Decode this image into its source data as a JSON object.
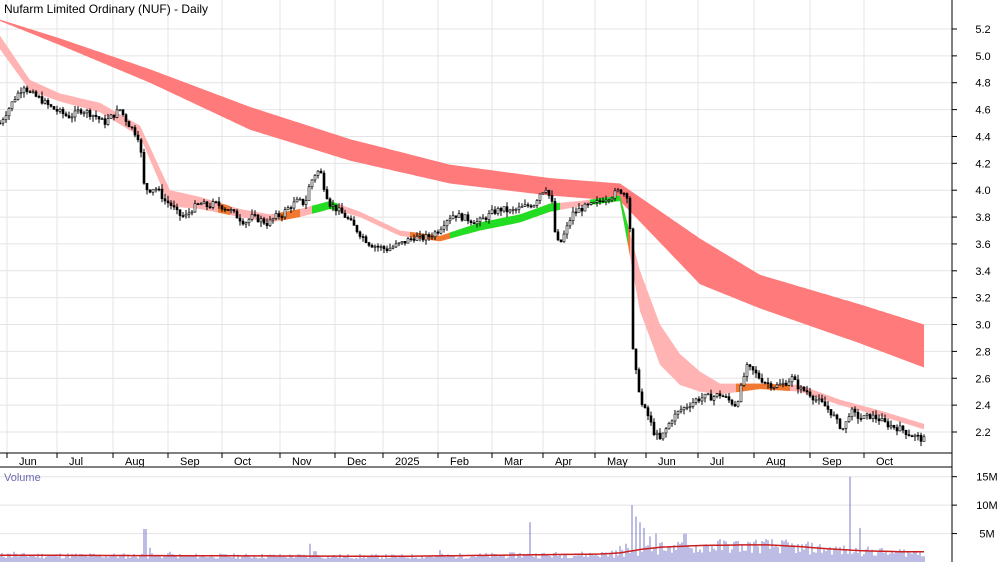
{
  "chart_data": [
    {
      "type": "candlestick",
      "title": "Nufarm Limited Ordinary (NUF) - Daily",
      "ylim": [
        2.05,
        5.35
      ],
      "yticks": [
        "5.2",
        "5.0",
        "4.8",
        "4.6",
        "4.4",
        "4.2",
        "4.0",
        "3.8",
        "3.6",
        "3.4",
        "3.2",
        "3.0",
        "2.8",
        "2.6",
        "2.4",
        "2.2"
      ],
      "xticks": [
        "Jun",
        "Jul",
        "Aug",
        "Sep",
        "Oct",
        "Nov",
        "Dec",
        "2025",
        "Feb",
        "Mar",
        "Apr",
        "May",
        "Jun",
        "Jul",
        "Aug",
        "Sep",
        "Oct"
      ],
      "grid": true,
      "price_path": [
        [
          0,
          4.5
        ],
        [
          8,
          4.6
        ],
        [
          16,
          4.7
        ],
        [
          24,
          4.78
        ],
        [
          30,
          4.72
        ],
        [
          40,
          4.68
        ],
        [
          50,
          4.62
        ],
        [
          60,
          4.58
        ],
        [
          68,
          4.55
        ],
        [
          74,
          4.56
        ],
        [
          80,
          4.6
        ],
        [
          88,
          4.58
        ],
        [
          96,
          4.55
        ],
        [
          104,
          4.5
        ],
        [
          112,
          4.55
        ],
        [
          120,
          4.6
        ],
        [
          128,
          4.5
        ],
        [
          136,
          4.42
        ],
        [
          140,
          4.38
        ],
        [
          143,
          4.05
        ],
        [
          148,
          4.0
        ],
        [
          155,
          4.02
        ],
        [
          160,
          3.98
        ],
        [
          165,
          3.92
        ],
        [
          170,
          3.9
        ],
        [
          178,
          3.82
        ],
        [
          185,
          3.8
        ],
        [
          192,
          3.86
        ],
        [
          200,
          3.9
        ],
        [
          208,
          3.88
        ],
        [
          215,
          3.9
        ],
        [
          222,
          3.88
        ],
        [
          230,
          3.85
        ],
        [
          238,
          3.8
        ],
        [
          245,
          3.76
        ],
        [
          252,
          3.8
        ],
        [
          260,
          3.78
        ],
        [
          268,
          3.75
        ],
        [
          275,
          3.8
        ],
        [
          282,
          3.82
        ],
        [
          290,
          3.88
        ],
        [
          298,
          3.92
        ],
        [
          305,
          3.9
        ],
        [
          310,
          4.05
        ],
        [
          315,
          4.12
        ],
        [
          320,
          4.15
        ],
        [
          325,
          4.0
        ],
        [
          330,
          3.9
        ],
        [
          338,
          3.85
        ],
        [
          346,
          3.8
        ],
        [
          355,
          3.72
        ],
        [
          362,
          3.66
        ],
        [
          370,
          3.6
        ],
        [
          378,
          3.58
        ],
        [
          386,
          3.56
        ],
        [
          394,
          3.58
        ],
        [
          400,
          3.6
        ],
        [
          406,
          3.62
        ],
        [
          414,
          3.65
        ],
        [
          422,
          3.64
        ],
        [
          430,
          3.66
        ],
        [
          438,
          3.7
        ],
        [
          446,
          3.78
        ],
        [
          454,
          3.82
        ],
        [
          462,
          3.8
        ],
        [
          470,
          3.78
        ],
        [
          478,
          3.76
        ],
        [
          486,
          3.8
        ],
        [
          494,
          3.84
        ],
        [
          502,
          3.86
        ],
        [
          510,
          3.84
        ],
        [
          518,
          3.86
        ],
        [
          526,
          3.88
        ],
        [
          534,
          3.9
        ],
        [
          540,
          3.98
        ],
        [
          546,
          4.02
        ],
        [
          552,
          3.9
        ],
        [
          556,
          3.62
        ],
        [
          560,
          3.6
        ],
        [
          566,
          3.7
        ],
        [
          572,
          3.82
        ],
        [
          580,
          3.86
        ],
        [
          588,
          3.88
        ],
        [
          596,
          3.9
        ],
        [
          604,
          3.94
        ],
        [
          612,
          3.96
        ],
        [
          620,
          4.0
        ],
        [
          628,
          3.96
        ],
        [
          631,
          3.6
        ],
        [
          633,
          2.8
        ],
        [
          636,
          2.64
        ],
        [
          642,
          2.4
        ],
        [
          648,
          2.32
        ],
        [
          654,
          2.2
        ],
        [
          660,
          2.14
        ],
        [
          666,
          2.22
        ],
        [
          672,
          2.3
        ],
        [
          680,
          2.36
        ],
        [
          688,
          2.4
        ],
        [
          696,
          2.44
        ],
        [
          704,
          2.46
        ],
        [
          712,
          2.46
        ],
        [
          720,
          2.48
        ],
        [
          728,
          2.44
        ],
        [
          736,
          2.4
        ],
        [
          742,
          2.55
        ],
        [
          746,
          2.68
        ],
        [
          752,
          2.66
        ],
        [
          760,
          2.6
        ],
        [
          768,
          2.56
        ],
        [
          776,
          2.54
        ],
        [
          784,
          2.56
        ],
        [
          792,
          2.6
        ],
        [
          800,
          2.52
        ],
        [
          808,
          2.5
        ],
        [
          816,
          2.44
        ],
        [
          824,
          2.4
        ],
        [
          832,
          2.34
        ],
        [
          838,
          2.26
        ],
        [
          844,
          2.22
        ],
        [
          850,
          2.36
        ],
        [
          856,
          2.32
        ],
        [
          862,
          2.3
        ],
        [
          870,
          2.32
        ],
        [
          878,
          2.3
        ],
        [
          886,
          2.26
        ],
        [
          894,
          2.24
        ],
        [
          902,
          2.22
        ],
        [
          910,
          2.18
        ],
        [
          918,
          2.16
        ],
        [
          924,
          2.14
        ]
      ],
      "long_band_top": [
        [
          0,
          5.27
        ],
        [
          60,
          5.13
        ],
        [
          150,
          4.9
        ],
        [
          250,
          4.62
        ],
        [
          350,
          4.38
        ],
        [
          450,
          4.19
        ],
        [
          550,
          4.09
        ],
        [
          620,
          4.05
        ],
        [
          700,
          3.64
        ],
        [
          760,
          3.37
        ],
        [
          860,
          3.15
        ],
        [
          924,
          3.0
        ]
      ],
      "long_band_bottom": [
        [
          0,
          5.26
        ],
        [
          60,
          5.08
        ],
        [
          150,
          4.8
        ],
        [
          250,
          4.45
        ],
        [
          350,
          4.22
        ],
        [
          450,
          4.05
        ],
        [
          550,
          3.96
        ],
        [
          620,
          3.92
        ],
        [
          700,
          3.3
        ],
        [
          760,
          3.12
        ],
        [
          860,
          2.86
        ],
        [
          924,
          2.68
        ]
      ],
      "short_band_top": [
        [
          0,
          5.15
        ],
        [
          30,
          4.82
        ],
        [
          60,
          4.72
        ],
        [
          100,
          4.65
        ],
        [
          140,
          4.48
        ],
        [
          170,
          4.0
        ],
        [
          200,
          3.95
        ],
        [
          240,
          3.86
        ],
        [
          270,
          3.82
        ],
        [
          300,
          3.86
        ],
        [
          330,
          3.92
        ],
        [
          360,
          3.84
        ],
        [
          400,
          3.7
        ],
        [
          440,
          3.66
        ],
        [
          480,
          3.76
        ],
        [
          520,
          3.82
        ],
        [
          550,
          3.9
        ],
        [
          580,
          3.92
        ],
        [
          620,
          3.96
        ],
        [
          640,
          3.4
        ],
        [
          660,
          3.0
        ],
        [
          680,
          2.78
        ],
        [
          700,
          2.65
        ],
        [
          720,
          2.56
        ],
        [
          760,
          2.56
        ],
        [
          800,
          2.55
        ],
        [
          840,
          2.44
        ],
        [
          880,
          2.36
        ],
        [
          924,
          2.26
        ]
      ],
      "short_band_bottom": [
        [
          0,
          5.05
        ],
        [
          30,
          4.74
        ],
        [
          60,
          4.66
        ],
        [
          100,
          4.58
        ],
        [
          140,
          4.4
        ],
        [
          170,
          3.88
        ],
        [
          200,
          3.86
        ],
        [
          240,
          3.8
        ],
        [
          270,
          3.76
        ],
        [
          300,
          3.8
        ],
        [
          330,
          3.86
        ],
        [
          360,
          3.8
        ],
        [
          400,
          3.66
        ],
        [
          440,
          3.62
        ],
        [
          480,
          3.7
        ],
        [
          520,
          3.76
        ],
        [
          550,
          3.84
        ],
        [
          580,
          3.88
        ],
        [
          620,
          3.92
        ],
        [
          640,
          3.1
        ],
        [
          660,
          2.7
        ],
        [
          680,
          2.55
        ],
        [
          700,
          2.5
        ],
        [
          720,
          2.48
        ],
        [
          760,
          2.52
        ],
        [
          800,
          2.5
        ],
        [
          840,
          2.4
        ],
        [
          880,
          2.32
        ],
        [
          924,
          2.22
        ]
      ],
      "green_segments": [
        [
          312,
          338
        ],
        [
          450,
          560
        ],
        [
          590,
          628
        ]
      ],
      "orange_segments": [
        [
          218,
          230
        ],
        [
          280,
          300
        ],
        [
          410,
          450
        ],
        [
          540,
          556
        ],
        [
          614,
          630
        ],
        [
          736,
          790
        ]
      ]
    },
    {
      "type": "bar",
      "title": "Volume",
      "ylim": [
        0,
        16
      ],
      "yticks": [
        "15M",
        "10M",
        "5M"
      ],
      "volume_spikes": [
        [
          8,
          1.5
        ],
        [
          14,
          1.8
        ],
        [
          145,
          5.8
        ],
        [
          150,
          2.5
        ],
        [
          170,
          1.8
        ],
        [
          310,
          3.2
        ],
        [
          315,
          1.9
        ],
        [
          440,
          2.1
        ],
        [
          520,
          1.6
        ],
        [
          530,
          7.0
        ],
        [
          604,
          1.6
        ],
        [
          612,
          2.0
        ],
        [
          620,
          2.8
        ],
        [
          626,
          3.2
        ],
        [
          632,
          10.0
        ],
        [
          636,
          8.0
        ],
        [
          640,
          7.0
        ],
        [
          644,
          6.0
        ],
        [
          650,
          4.5
        ],
        [
          656,
          5.0
        ],
        [
          662,
          3.5
        ],
        [
          668,
          2.8
        ],
        [
          674,
          3.0
        ],
        [
          680,
          3.2
        ],
        [
          685,
          5.0
        ],
        [
          690,
          2.5
        ],
        [
          700,
          2.2
        ],
        [
          745,
          2.0
        ],
        [
          800,
          1.8
        ],
        [
          846,
          2.2
        ],
        [
          850,
          15.0
        ],
        [
          860,
          6.0
        ],
        [
          870,
          2.0
        ],
        [
          890,
          1.5
        ],
        [
          910,
          1.6
        ]
      ],
      "volume_avg": [
        [
          0,
          1.2
        ],
        [
          200,
          1.1
        ],
        [
          400,
          1.0
        ],
        [
          500,
          1.2
        ],
        [
          600,
          1.4
        ],
        [
          620,
          1.6
        ],
        [
          640,
          2.2
        ],
        [
          660,
          2.6
        ],
        [
          700,
          2.9
        ],
        [
          740,
          3.0
        ],
        [
          770,
          3.0
        ],
        [
          800,
          2.7
        ],
        [
          830,
          2.3
        ],
        [
          860,
          2.0
        ],
        [
          900,
          1.8
        ],
        [
          924,
          1.8
        ]
      ]
    }
  ]
}
